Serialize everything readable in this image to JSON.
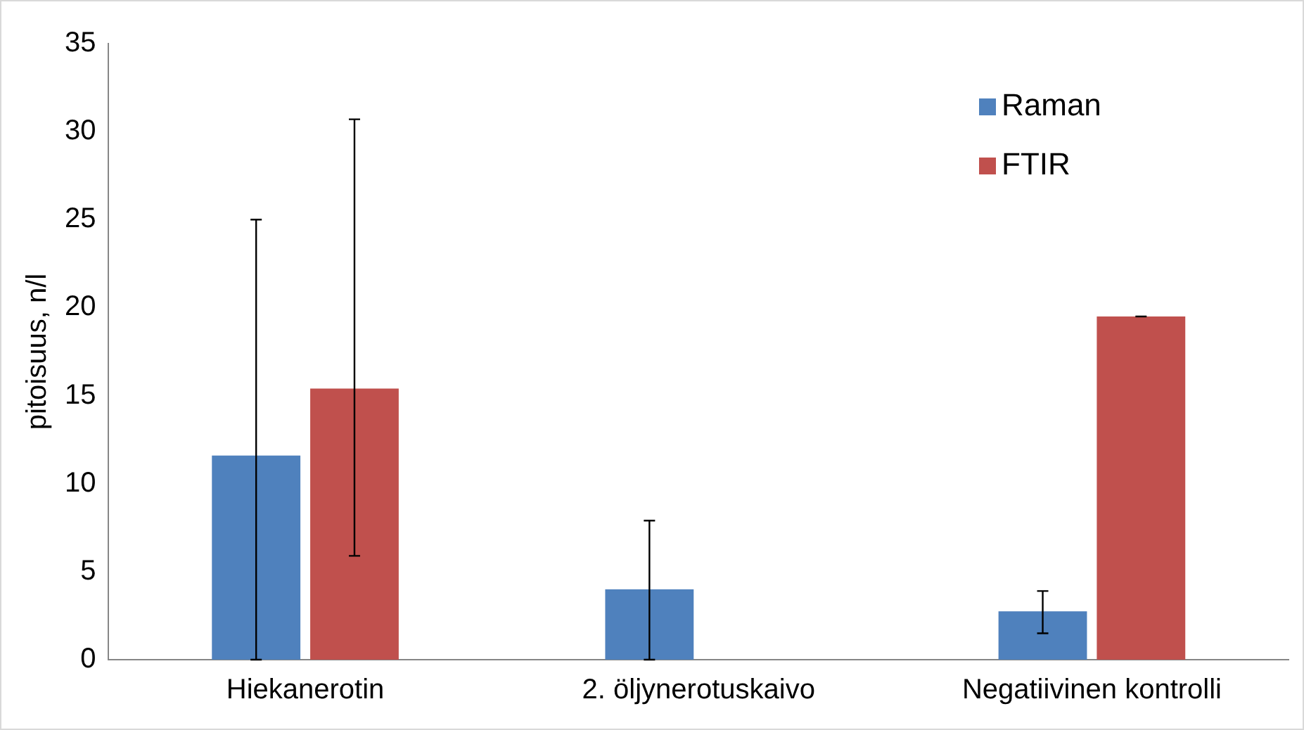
{
  "chart_data": {
    "type": "bar",
    "ylabel": "pitoisuus, n/l",
    "categories": [
      "Hiekanerotin",
      "2. öljynerotuskaivo",
      "Negatiivinen kontrolli"
    ],
    "series": [
      {
        "name": "Raman",
        "color": "#4f81bd",
        "values": [
          11.6,
          4.0,
          2.75
        ],
        "errors": [
          [
            0,
            25
          ],
          [
            0,
            7.9
          ],
          [
            1.5,
            3.9
          ]
        ]
      },
      {
        "name": "FTIR",
        "color": "#c0504d",
        "values": [
          15.4,
          null,
          19.5
        ],
        "errors": [
          [
            5.9,
            30.7
          ],
          null,
          [
            19.5,
            19.5
          ]
        ]
      }
    ],
    "ylim": [
      0,
      35
    ],
    "yticks": [
      0,
      5,
      10,
      15,
      20,
      25,
      30,
      35
    ],
    "grid": false,
    "legend": "top right"
  }
}
